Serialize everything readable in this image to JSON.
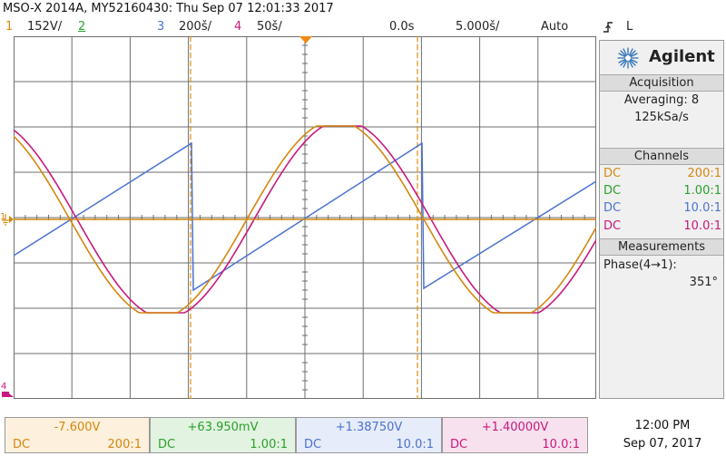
{
  "title": "MSO-X 2014A, MY52160430: Thu Sep 07 12:01:33 2017",
  "colors": {
    "ch1": "#d4870f",
    "ch2": "#2aa02a",
    "ch3": "#4a72d0",
    "ch4": "#c8197e",
    "grid": "#6e6e6e"
  },
  "scale_bar": {
    "ch1_num": "1",
    "ch1_scale": "152V/",
    "ch2_num": "2",
    "ch3_num": "3",
    "ch3_scale": "200š/",
    "ch4_num": "4",
    "ch4_scale": "50š/",
    "time_delay": "0.0s",
    "time_scale": "5.000š/",
    "trigger_mode": "Auto",
    "trigger_icon": "trigger-edge-icon",
    "trigger_source": "L"
  },
  "screen": {
    "ch1_marker": "1",
    "ch4_marker": "4"
  },
  "panel": {
    "brand": "Agilent",
    "brand_icon": "agilent-spark-logo",
    "acquisition_header": "Acquisition",
    "averaging": "Averaging: 8",
    "sample_rate": "125kSa/s",
    "channels_header": "Channels",
    "channels": [
      {
        "coupling": "DC",
        "ratio": "200:1"
      },
      {
        "coupling": "DC",
        "ratio": "1.00:1"
      },
      {
        "coupling": "DC",
        "ratio": "10.0:1"
      },
      {
        "coupling": "DC",
        "ratio": "10.0:1"
      }
    ],
    "measurements_header": "Measurements",
    "measurement_label": "Phase(4→1):",
    "measurement_value": "351°"
  },
  "bottom": [
    {
      "offset": "-7.600V",
      "coupling": "DC",
      "ratio": "200:1"
    },
    {
      "offset": "+63.950mV",
      "coupling": "DC",
      "ratio": "1.00:1"
    },
    {
      "offset": "+1.38750V",
      "coupling": "DC",
      "ratio": "10.0:1"
    },
    {
      "offset": "+1.40000V",
      "coupling": "DC",
      "ratio": "10.0:1"
    }
  ],
  "clock": {
    "time": "12:00 PM",
    "date": "Sep 07, 2017"
  }
}
